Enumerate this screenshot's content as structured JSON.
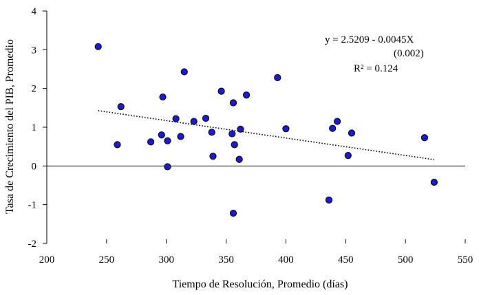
{
  "chart_data": {
    "type": "scatter",
    "title": "",
    "xlabel": "Tiempo de Resolución, Promedio (días)",
    "ylabel": "Tasa de Crecimiento del PIB, Promedio",
    "xlim": [
      200,
      550
    ],
    "ylim": [
      -2,
      4
    ],
    "xticks": [
      200,
      250,
      300,
      350,
      400,
      450,
      500,
      550
    ],
    "yticks": [
      -2,
      -1,
      0,
      1,
      2,
      3,
      4
    ],
    "grid": false,
    "legend": "none",
    "point_color": "#1a1ad6",
    "trendline": {
      "style": "dotted",
      "intercept": 2.5209,
      "slope": -0.0045,
      "x_range": [
        243,
        524
      ]
    },
    "annotations": {
      "equation": "y = 2.5209 - 0.0045X",
      "std_error": "(0.002)",
      "r2": "R² = 0.124"
    },
    "points": [
      {
        "x": 243,
        "y": 3.08
      },
      {
        "x": 259,
        "y": 0.55
      },
      {
        "x": 262,
        "y": 1.53
      },
      {
        "x": 287,
        "y": 0.62
      },
      {
        "x": 297,
        "y": 1.78
      },
      {
        "x": 296,
        "y": 0.8
      },
      {
        "x": 301,
        "y": -0.02
      },
      {
        "x": 301,
        "y": 0.65
      },
      {
        "x": 308,
        "y": 1.22
      },
      {
        "x": 312,
        "y": 0.76
      },
      {
        "x": 315,
        "y": 2.43
      },
      {
        "x": 323,
        "y": 1.15
      },
      {
        "x": 333,
        "y": 1.23
      },
      {
        "x": 338,
        "y": 0.87
      },
      {
        "x": 339,
        "y": 0.25
      },
      {
        "x": 346,
        "y": 1.93
      },
      {
        "x": 355,
        "y": 0.83
      },
      {
        "x": 356,
        "y": 1.63
      },
      {
        "x": 357,
        "y": 0.55
      },
      {
        "x": 356,
        "y": -1.22
      },
      {
        "x": 361,
        "y": 0.17
      },
      {
        "x": 362,
        "y": 0.95
      },
      {
        "x": 367,
        "y": 1.83
      },
      {
        "x": 393,
        "y": 2.28
      },
      {
        "x": 400,
        "y": 0.96
      },
      {
        "x": 436,
        "y": -0.88
      },
      {
        "x": 439,
        "y": 0.97
      },
      {
        "x": 443,
        "y": 1.15
      },
      {
        "x": 452,
        "y": 0.27
      },
      {
        "x": 455,
        "y": 0.85
      },
      {
        "x": 516,
        "y": 0.73
      },
      {
        "x": 524,
        "y": -0.42
      }
    ]
  }
}
